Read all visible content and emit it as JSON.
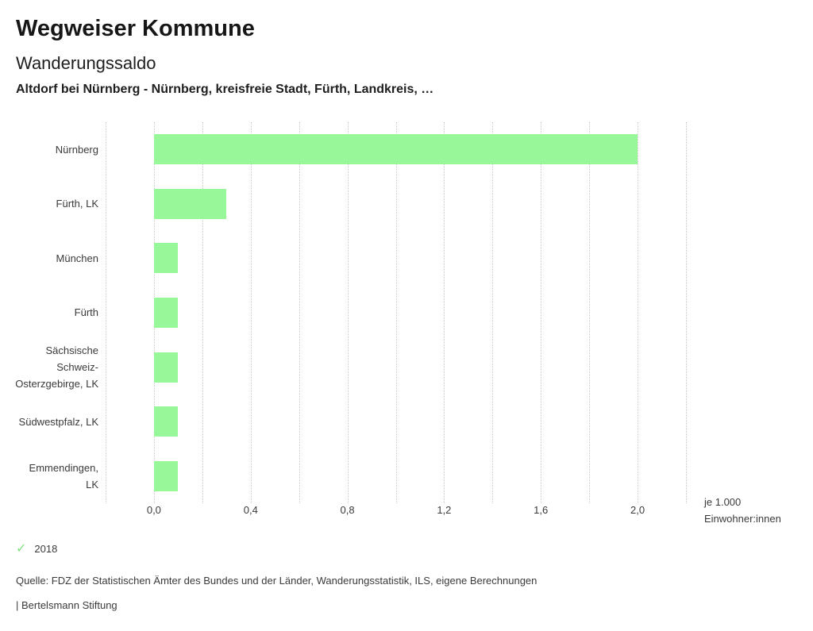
{
  "header": {
    "app_title": "Wegweiser Kommune",
    "chart_title": "Wanderungssaldo",
    "chart_subtitle": "Altdorf bei Nürnberg - Nürnberg, kreisfreie Stadt, Fürth, Landkreis, …"
  },
  "chart_data": {
    "type": "bar",
    "orientation": "horizontal",
    "title": "Wanderungssaldo",
    "categories": [
      "Nürnberg",
      "Fürth, LK",
      "München",
      "Fürth",
      "Sächsische Schweiz-Osterzgebirge, LK",
      "Südwestpfalz, LK",
      "Emmendingen, LK"
    ],
    "series": [
      {
        "name": "2018",
        "color": "#98f798",
        "values": [
          2.0,
          0.3,
          0.1,
          0.1,
          0.1,
          0.1,
          0.1
        ]
      }
    ],
    "xlim": [
      -0.2,
      2.2
    ],
    "grid": true,
    "grid_step": 0.2,
    "x_tick_values": [
      0.0,
      0.4,
      0.8,
      1.2,
      1.6,
      2.0
    ],
    "x_tick_labels": [
      "0,0",
      "0,4",
      "0,8",
      "1,2",
      "1,6",
      "2,0"
    ],
    "unit_label_lines": [
      "je 1.000",
      "Einwohner:innen"
    ],
    "legend_position": "bottom-left"
  },
  "legend": {
    "items": [
      {
        "marker": "check-icon",
        "glyph": "✓",
        "color": "#82e082",
        "label": "2018"
      }
    ]
  },
  "footer": {
    "source": "Quelle: FDZ der Statistischen Ämter des Bundes und der Länder, Wanderungsstatistik, ILS, eigene Berechnungen",
    "attribution": "| Bertelsmann Stiftung"
  },
  "colors": {
    "bar": "#98f798",
    "gridline": "#c9c9c9",
    "text": "#3a3a3a"
  }
}
